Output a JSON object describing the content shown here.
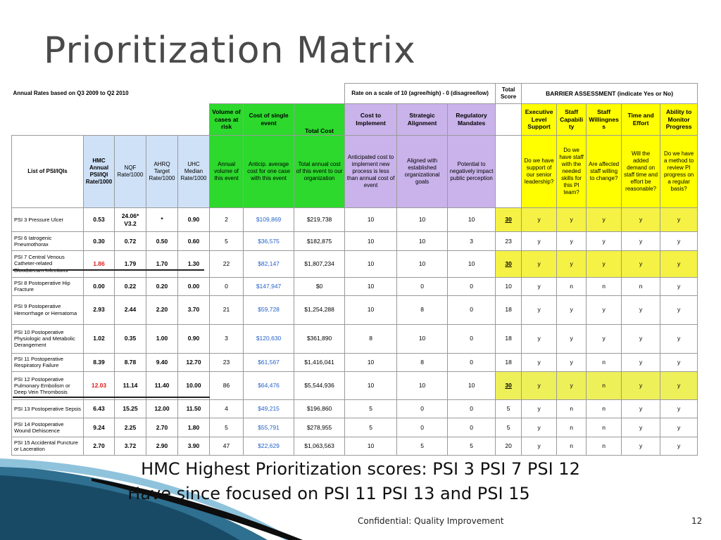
{
  "slide": {
    "title": "Prioritization Matrix",
    "bottom_line1": "HMC Highest Prioritization scores:  PSI 3 PSI 7 PSI 12",
    "bottom_line2": "Have since focused on PSI 11 PSI 13 and PSI 15",
    "footer": "Confidential: Quality Improvement",
    "page_number": "12"
  },
  "colors": {
    "green": "#2cd92c",
    "yellow": "#ffff00",
    "purple": "#c9b3ea",
    "blue": "#cfe1f7",
    "highlight": "#f5f245",
    "red_value": "#e01b1b",
    "blue_value": "#2563c9"
  },
  "matrix": {
    "annual_rates_label": "Annual Rates based on Q3 2009 to Q2 2010",
    "rate_scale_label": "Rate on a scale of 10 (agree/high) - 0 (disagree/low)",
    "total_score_label": "Total Score",
    "barrier_title": "BARRIER ASSESSMENT (indicate Yes or No)",
    "headers": {
      "volume": "Volume of cases at risk",
      "cost_single": "Cost of single event",
      "total_cost": "Total Cost",
      "cost_implement": "Cost to Implement",
      "strategic": "Strategic Alignment",
      "regulatory": "Regulatory Mandates",
      "exec_support": "Executive Level Support",
      "staff_capability": "Staff Capabili ty",
      "staff_willingness": "Staff Willingnes s",
      "time_effort": "Time and Effort",
      "monitor": "Ability to Monitor Progress"
    },
    "subheaders": {
      "list_label": "List of PSI/IQIs",
      "hmc": "HMC Annual PSI/IQI Rate/1000",
      "nqf": "NQF Rate/1000",
      "ahrq": "AHRQ Target Rate/1000",
      "uhc": "UHC Median Rate/1000",
      "volume_desc": "Annual volume of this event",
      "cost_single_desc": "Anticip. average cost for one case with this event",
      "total_cost_desc": "Total annual cost of this event to our organization",
      "cost_impl_desc": "Anticipated cost to implement new process is less than annual cost of event",
      "strategic_desc": "Aligned with established organizational goals",
      "regulatory_desc": "Potential to negatively impact public perception",
      "exec_desc": "Do we have support of our senior leadership?",
      "capability_desc": "Do we have staff with the needed skills for this PI team?",
      "willing_desc": "Are affected staff willing to change?",
      "time_desc": "Will the added demand on staff time and effort be reasonable?",
      "monitor_desc": "Do we have a method to review PI progress on a regular basis?"
    },
    "rows": [
      {
        "label": "PSI 3 Pressure Ulcer",
        "hmc": "0.53",
        "nqf": "24.06* V3.2",
        "ahrq": "*",
        "uhc": "0.90",
        "volume": "2",
        "cost_single": "$109,869",
        "total_cost": "$219,738",
        "cost_impl": "10",
        "strategic": "10",
        "regulatory": "10",
        "score": "30",
        "exec": "y",
        "capability": "y",
        "willing": "y",
        "time": "y",
        "monitor": "y"
      },
      {
        "label": "PSI 6 Iatrogenic Pneumothorax",
        "hmc": "0.30",
        "nqf": "0.72",
        "ahrq": "0.50",
        "uhc": "0.60",
        "volume": "5",
        "cost_single": "$36,575",
        "total_cost": "$182,875",
        "cost_impl": "10",
        "strategic": "10",
        "regulatory": "3",
        "score": "23",
        "exec": "y",
        "capability": "y",
        "willing": "y",
        "time": "y",
        "monitor": "y"
      },
      {
        "label": "PSI 7 Central Venous Catheter-related Bloodstream Infections",
        "hmc": "1.86",
        "nqf": "1.79",
        "ahrq": "1.70",
        "uhc": "1.30",
        "volume": "22",
        "cost_single": "$82,147",
        "total_cost": "$1,807,234",
        "cost_impl": "10",
        "strategic": "10",
        "regulatory": "10",
        "score": "30",
        "exec": "y",
        "capability": "y",
        "willing": "y",
        "time": "y",
        "monitor": "y"
      },
      {
        "label": "PSI 8 Postoperative Hip Fracture",
        "hmc": "0.00",
        "nqf": "0.22",
        "ahrq": "0.20",
        "uhc": "0.00",
        "volume": "0",
        "cost_single": "$147,947",
        "total_cost": "$0",
        "cost_impl": "10",
        "strategic": "0",
        "regulatory": "0",
        "score": "10",
        "exec": "y",
        "capability": "n",
        "willing": "n",
        "time": "n",
        "monitor": "y"
      },
      {
        "label": "PSI 9 Postoperative Hemorrhage or Hematoma",
        "hmc": "2.93",
        "nqf": "2.44",
        "ahrq": "2.20",
        "uhc": "3.70",
        "volume": "21",
        "cost_single": "$59,728",
        "total_cost": "$1,254,288",
        "cost_impl": "10",
        "strategic": "8",
        "regulatory": "0",
        "score": "18",
        "exec": "y",
        "capability": "y",
        "willing": "y",
        "time": "y",
        "monitor": "y"
      },
      {
        "label": "PSI 10 Postoperative Physiologic and Metabolic Derangement",
        "hmc": "1.02",
        "nqf": "0.35",
        "ahrq": "1.00",
        "uhc": "0.90",
        "volume": "3",
        "cost_single": "$120,630",
        "total_cost": "$361,890",
        "cost_impl": "8",
        "strategic": "10",
        "regulatory": "0",
        "score": "18",
        "exec": "y",
        "capability": "y",
        "willing": "y",
        "time": "y",
        "monitor": "y"
      },
      {
        "label": "PSI 11 Postoperative Respiratory Failure",
        "hmc": "8.39",
        "nqf": "8.78",
        "ahrq": "9.40",
        "uhc": "12.70",
        "volume": "23",
        "cost_single": "$61,567",
        "total_cost": "$1,416,041",
        "cost_impl": "10",
        "strategic": "8",
        "regulatory": "0",
        "score": "18",
        "exec": "y",
        "capability": "y",
        "willing": "n",
        "time": "y",
        "monitor": "y"
      },
      {
        "label": "PSI 12 Postoperative Pulmonary Embolism or Deep Vein Thrombosis",
        "hmc": "12.03",
        "nqf": "11.14",
        "ahrq": "11.40",
        "uhc": "10.00",
        "volume": "86",
        "cost_single": "$64,476",
        "total_cost": "$5,544,936",
        "cost_impl": "10",
        "strategic": "10",
        "regulatory": "10",
        "score": "30",
        "exec": "y",
        "capability": "y",
        "willing": "n",
        "time": "y",
        "monitor": "y"
      },
      {
        "label": "PSI 13 Postoperative Sepsis",
        "hmc": "6.43",
        "nqf": "15.25",
        "ahrq": "12.00",
        "uhc": "11.50",
        "volume": "4",
        "cost_single": "$49,215",
        "total_cost": "$196,860",
        "cost_impl": "5",
        "strategic": "0",
        "regulatory": "0",
        "score": "5",
        "exec": "y",
        "capability": "n",
        "willing": "n",
        "time": "y",
        "monitor": "y"
      },
      {
        "label": "PSI 14 Postoperative Wound Dehiscence",
        "hmc": "9.24",
        "nqf": "2.25",
        "ahrq": "2.70",
        "uhc": "1.80",
        "volume": "5",
        "cost_single": "$55,791",
        "total_cost": "$278,955",
        "cost_impl": "5",
        "strategic": "0",
        "regulatory": "0",
        "score": "5",
        "exec": "y",
        "capability": "n",
        "willing": "n",
        "time": "y",
        "monitor": "y"
      },
      {
        "label": "PSI 15 Accidental Puncture or Laceration",
        "hmc": "2.70",
        "nqf": "3.72",
        "ahrq": "2.90",
        "uhc": "3.90",
        "volume": "47",
        "cost_single": "$22,629",
        "total_cost": "$1,063,563",
        "cost_impl": "10",
        "strategic": "5",
        "regulatory": "5",
        "score": "20",
        "exec": "y",
        "capability": "n",
        "willing": "n",
        "time": "y",
        "monitor": "y"
      }
    ]
  }
}
